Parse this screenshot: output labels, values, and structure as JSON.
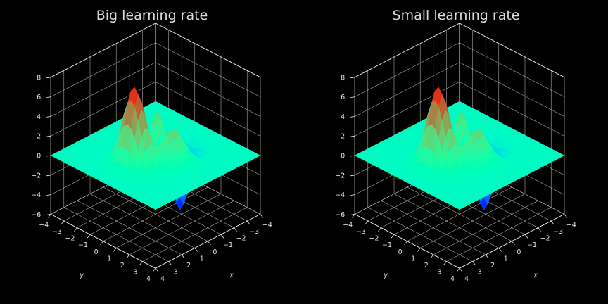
{
  "colors": {
    "background": "#000000",
    "text": "#dcdcdc",
    "grid": "#d8d8d8",
    "colormap": "rainbow"
  },
  "chart_data": [
    {
      "type": "surface3d",
      "title": "Big learning rate",
      "xlabel": "x",
      "ylabel": "y",
      "zlabel": "",
      "x_ticks": [
        -4,
        -3,
        -2,
        -1,
        0,
        1,
        2,
        3,
        4
      ],
      "y_ticks": [
        -4,
        -3,
        -2,
        -1,
        0,
        1,
        2,
        3,
        4
      ],
      "z_ticks": [
        -6,
        -4,
        -2,
        0,
        2,
        4,
        6,
        8
      ],
      "xlim": [
        -4,
        4
      ],
      "ylim": [
        -4,
        4
      ],
      "zlim": [
        -6,
        8
      ],
      "colorbar_range": [
        -6.5,
        8.1
      ],
      "grid": true,
      "view": {
        "elev": 30,
        "azim": 45
      },
      "surface": {
        "function": "peaks",
        "grid_range": [
          -4,
          4
        ],
        "z_min_approx": -6.5,
        "z_max_approx": 8.1
      }
    },
    {
      "type": "surface3d",
      "title": "Small learning rate",
      "xlabel": "x",
      "ylabel": "y",
      "zlabel": "",
      "x_ticks": [
        -4,
        -3,
        -2,
        -1,
        0,
        1,
        2,
        3,
        4
      ],
      "y_ticks": [
        -4,
        -3,
        -2,
        -1,
        0,
        1,
        2,
        3,
        4
      ],
      "z_ticks": [
        -6,
        -4,
        -2,
        0,
        2,
        4,
        6,
        8
      ],
      "xlim": [
        -4,
        4
      ],
      "ylim": [
        -4,
        4
      ],
      "zlim": [
        -6,
        8
      ],
      "colorbar_range": [
        -6.5,
        8.1
      ],
      "grid": true,
      "view": {
        "elev": 30,
        "azim": 45
      },
      "surface": {
        "function": "peaks",
        "grid_range": [
          -4,
          4
        ],
        "z_min_approx": -6.5,
        "z_max_approx": 8.1
      }
    }
  ]
}
